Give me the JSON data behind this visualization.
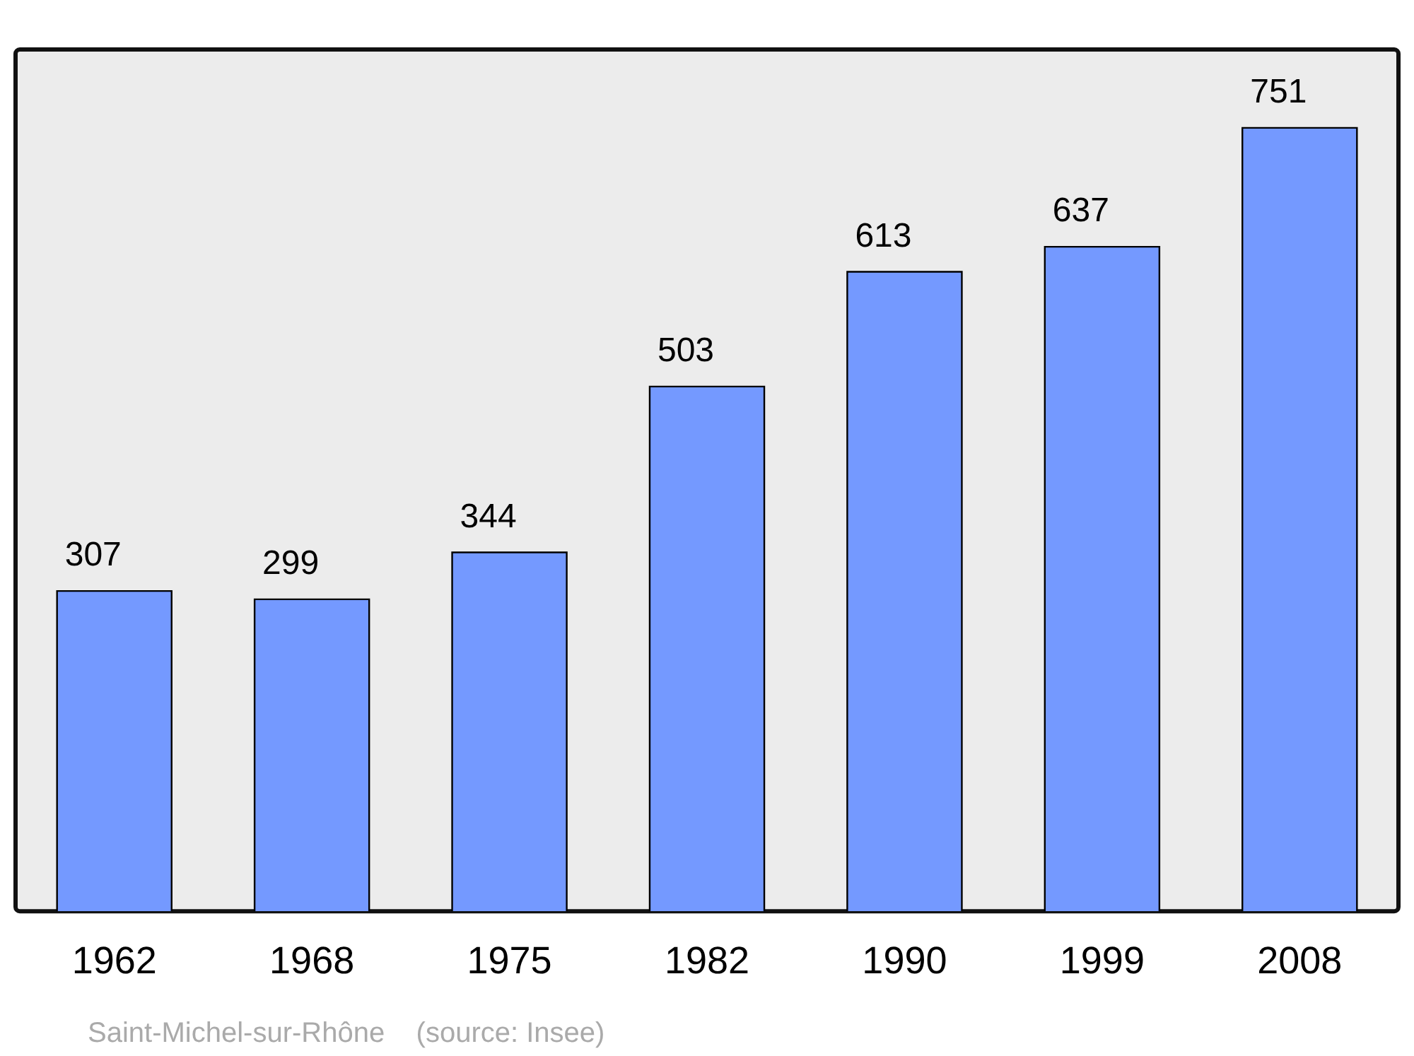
{
  "chart_data": {
    "type": "bar",
    "categories": [
      "1962",
      "1968",
      "1975",
      "1982",
      "1990",
      "1999",
      "2008"
    ],
    "values": [
      307,
      299,
      344,
      503,
      613,
      637,
      751
    ],
    "color": "#7499ff",
    "data_labels": true,
    "legend": false,
    "annotations": [
      "Saint-Michel-sur-Rhône    (source: Insee)"
    ]
  }
}
